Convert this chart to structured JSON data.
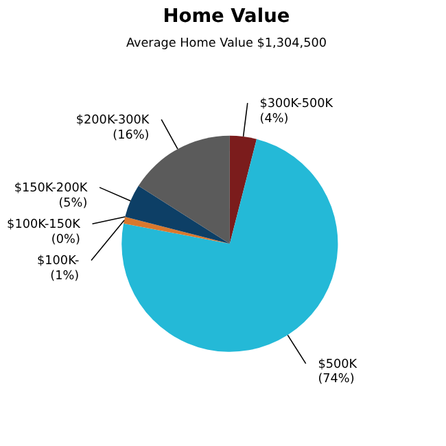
{
  "chart_data": {
    "type": "pie",
    "title": "Home Value",
    "subtitle": "Average Home Value  $1,304,500",
    "categories": [
      "$300K-500K",
      "$500K",
      "$100K-",
      "$100K-150K",
      "$150K-200K",
      "$200K-300K"
    ],
    "values": [
      4,
      74,
      1,
      0,
      5,
      16
    ],
    "colors": [
      "#7b1c1c",
      "#24b9d7",
      "#d9782d",
      "#e0e0e0",
      "#0d3f66",
      "#5b5b5b"
    ],
    "value_labels": [
      "(4%)",
      "(74%)",
      "(1%)",
      "(0%)",
      "(5%)",
      "(16%)"
    ],
    "legend": false
  }
}
